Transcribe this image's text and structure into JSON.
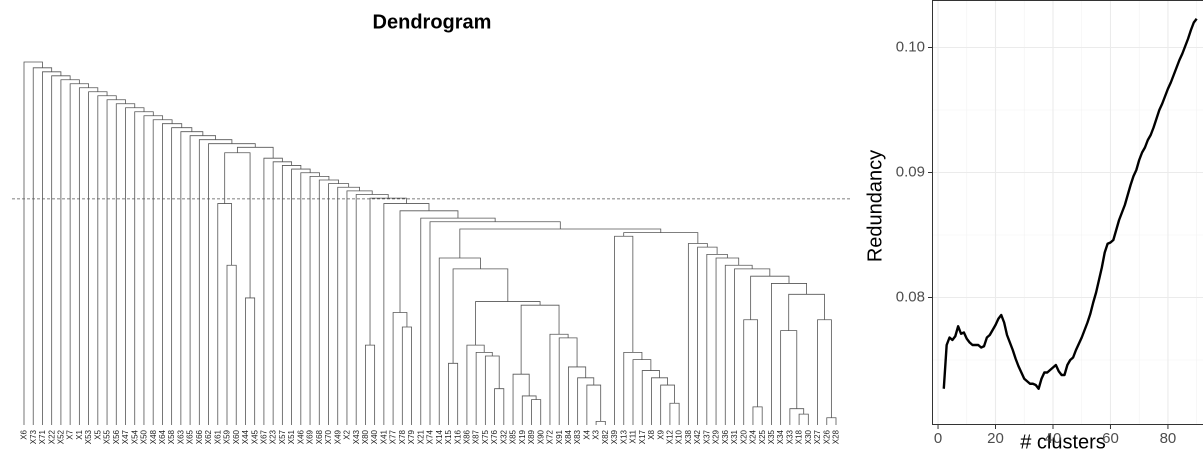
{
  "chart_data": [
    {
      "type": "dendrogram",
      "title": "Dendrogram",
      "labels": [
        "X6",
        "X73",
        "X71",
        "X22",
        "X52",
        "X7",
        "X1",
        "X53",
        "X5",
        "X55",
        "X56",
        "X47",
        "X54",
        "X50",
        "X48",
        "X64",
        "X58",
        "X63",
        "X65",
        "X66",
        "X62",
        "X61",
        "X59",
        "X60",
        "X44",
        "X45",
        "X67",
        "X23",
        "X57",
        "X51",
        "X46",
        "X69",
        "X68",
        "X70",
        "X49",
        "X2",
        "X43",
        "X80",
        "X40",
        "X41",
        "X77",
        "X78",
        "X79",
        "X21",
        "X74",
        "X14",
        "X15",
        "X16",
        "X86",
        "X87",
        "X75",
        "X76",
        "X32",
        "X85",
        "X19",
        "X89",
        "X90",
        "X72",
        "X91",
        "X84",
        "X83",
        "X4",
        "X3",
        "X82",
        "X39",
        "X13",
        "X11",
        "X17",
        "X8",
        "X9",
        "X12",
        "X10",
        "X38",
        "X42",
        "X37",
        "X29",
        "X36",
        "X31",
        "X20",
        "X24",
        "X25",
        "X35",
        "X34",
        "X33",
        "X18",
        "X30",
        "X27",
        "X26",
        "X28"
      ],
      "merges": [
        [
          84,
          85,
          0.03
        ],
        [
          83,
          89,
          0.045
        ],
        [
          82,
          90,
          0.26
        ],
        [
          87,
          88,
          0.02
        ],
        [
          86,
          92,
          0.29
        ],
        [
          91,
          93,
          0.36
        ],
        [
          81,
          94,
          0.39
        ],
        [
          79,
          80,
          0.05
        ],
        [
          78,
          96,
          0.29
        ],
        [
          97,
          95,
          0.41
        ],
        [
          77,
          98,
          0.43
        ],
        [
          76,
          99,
          0.44
        ],
        [
          75,
          100,
          0.46
        ],
        [
          74,
          101,
          0.47
        ],
        [
          73,
          102,
          0.49
        ],
        [
          72,
          103,
          0.5
        ],
        [
          70,
          71,
          0.06
        ],
        [
          69,
          105,
          0.11
        ],
        [
          68,
          106,
          0.13
        ],
        [
          67,
          107,
          0.15
        ],
        [
          66,
          108,
          0.18
        ],
        [
          65,
          109,
          0.2
        ],
        [
          64,
          110,
          0.52
        ],
        [
          111,
          104,
          0.53
        ],
        [
          62,
          63,
          0.01
        ],
        [
          61,
          113,
          0.11
        ],
        [
          60,
          114,
          0.13
        ],
        [
          59,
          115,
          0.16
        ],
        [
          58,
          116,
          0.24
        ],
        [
          57,
          117,
          0.25
        ],
        [
          55,
          56,
          0.07
        ],
        [
          54,
          119,
          0.08
        ],
        [
          53,
          120,
          0.14
        ],
        [
          121,
          118,
          0.33
        ],
        [
          51,
          52,
          0.1
        ],
        [
          50,
          123,
          0.19
        ],
        [
          49,
          124,
          0.2
        ],
        [
          48,
          125,
          0.22
        ],
        [
          126,
          122,
          0.34
        ],
        [
          46,
          47,
          0.17
        ],
        [
          128,
          127,
          0.43
        ],
        [
          45,
          129,
          0.46
        ],
        [
          130,
          112,
          0.54
        ],
        [
          44,
          131,
          0.56
        ],
        [
          43,
          132,
          0.57
        ],
        [
          41,
          42,
          0.27
        ],
        [
          40,
          134,
          0.31
        ],
        [
          135,
          133,
          0.59
        ],
        [
          39,
          136,
          0.61
        ],
        [
          37,
          38,
          0.22
        ],
        [
          138,
          137,
          0.625
        ],
        [
          36,
          139,
          0.635
        ],
        [
          35,
          140,
          0.645
        ],
        [
          34,
          141,
          0.655
        ],
        [
          33,
          142,
          0.665
        ],
        [
          32,
          143,
          0.675
        ],
        [
          31,
          144,
          0.685
        ],
        [
          30,
          145,
          0.695
        ],
        [
          29,
          146,
          0.705
        ],
        [
          28,
          147,
          0.715
        ],
        [
          27,
          148,
          0.725
        ],
        [
          26,
          149,
          0.735
        ],
        [
          22,
          23,
          0.44
        ],
        [
          21,
          151,
          0.61
        ],
        [
          24,
          25,
          0.35
        ],
        [
          152,
          153,
          0.75
        ],
        [
          154,
          150,
          0.765
        ],
        [
          20,
          155,
          0.775
        ],
        [
          19,
          156,
          0.786
        ],
        [
          18,
          157,
          0.797
        ],
        [
          17,
          158,
          0.808
        ],
        [
          16,
          159,
          0.819
        ],
        [
          15,
          160,
          0.83
        ],
        [
          14,
          161,
          0.841
        ],
        [
          13,
          162,
          0.852
        ],
        [
          12,
          163,
          0.863
        ],
        [
          11,
          164,
          0.874
        ],
        [
          10,
          165,
          0.885
        ],
        [
          9,
          166,
          0.896
        ],
        [
          8,
          167,
          0.907
        ],
        [
          7,
          168,
          0.918
        ],
        [
          6,
          169,
          0.929
        ],
        [
          5,
          170,
          0.94
        ],
        [
          4,
          171,
          0.951
        ],
        [
          3,
          172,
          0.962
        ],
        [
          2,
          173,
          0.973
        ],
        [
          1,
          174,
          0.984
        ],
        [
          0,
          175,
          1.0
        ]
      ],
      "cut_height": 0.623,
      "color": "#555555"
    },
    {
      "type": "line",
      "xlabel": "# clusters",
      "ylabel": "Redundancy",
      "x": [
        2,
        3,
        4,
        5,
        6,
        7,
        8,
        9,
        10,
        11,
        12,
        13,
        14,
        15,
        16,
        17,
        18,
        19,
        20,
        21,
        22,
        23,
        24,
        25,
        26,
        27,
        28,
        29,
        30,
        31,
        32,
        33,
        34,
        35,
        36,
        37,
        38,
        39,
        40,
        41,
        42,
        43,
        44,
        45,
        46,
        47,
        48,
        49,
        50,
        51,
        52,
        53,
        54,
        55,
        56,
        57,
        58,
        59,
        60,
        61,
        62,
        63,
        64,
        65,
        66,
        67,
        68,
        69,
        70,
        71,
        72,
        73,
        74,
        75,
        76,
        77,
        78,
        79,
        80,
        81,
        82,
        83,
        84,
        85,
        86,
        87,
        88,
        89,
        90
      ],
      "values": [
        0.0727,
        0.0762,
        0.0768,
        0.0766,
        0.0769,
        0.0777,
        0.0771,
        0.0772,
        0.0767,
        0.0764,
        0.0762,
        0.0762,
        0.0762,
        0.076,
        0.0761,
        0.0768,
        0.077,
        0.0774,
        0.0778,
        0.0783,
        0.0786,
        0.078,
        0.077,
        0.0764,
        0.0758,
        0.0751,
        0.0745,
        0.074,
        0.0735,
        0.0733,
        0.0731,
        0.0731,
        0.073,
        0.0727,
        0.0735,
        0.074,
        0.074,
        0.0742,
        0.0744,
        0.0746,
        0.0741,
        0.0738,
        0.0738,
        0.0746,
        0.075,
        0.0752,
        0.0758,
        0.0763,
        0.0768,
        0.0774,
        0.078,
        0.0787,
        0.0796,
        0.0804,
        0.0814,
        0.0824,
        0.0836,
        0.0843,
        0.0844,
        0.0846,
        0.0854,
        0.0862,
        0.0868,
        0.0874,
        0.0882,
        0.089,
        0.0897,
        0.0902,
        0.091,
        0.0916,
        0.092,
        0.0926,
        0.093,
        0.0936,
        0.0943,
        0.095,
        0.0955,
        0.0961,
        0.0967,
        0.0972,
        0.0978,
        0.0984,
        0.099,
        0.0995,
        0.1001,
        0.1007,
        0.1014,
        0.102,
        0.1023
      ],
      "color": "#000000",
      "xlim": [
        -2.1,
        92.2
      ],
      "ylim": [
        0.0698,
        0.1038
      ],
      "xticks": [
        0,
        20,
        40,
        60,
        80
      ],
      "yticks": [
        {
          "value": 0.1,
          "label": "0.10"
        },
        0.09,
        0.08
      ],
      "xminor_ticks": [
        10,
        30,
        50,
        70,
        90
      ],
      "yminor_ticks": [
        0.075,
        0.085,
        0.095
      ],
      "grid": true
    }
  ]
}
